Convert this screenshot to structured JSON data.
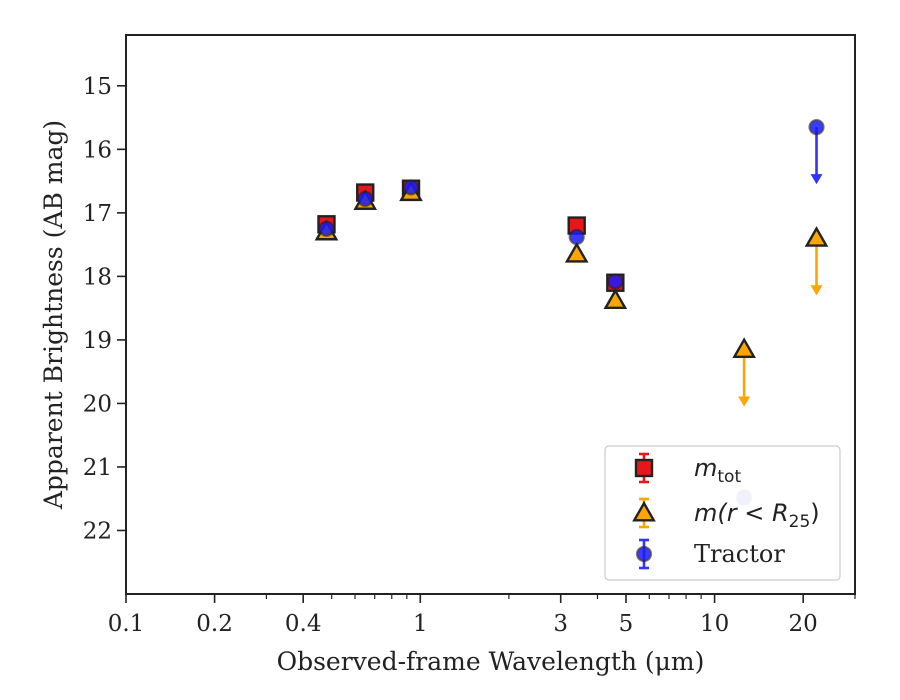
{
  "chart_data": {
    "type": "scatter",
    "xlabel": "Observed-frame Wavelength (μm)",
    "ylabel": "Apparent Brightness (AB mag)",
    "x_scale": "log",
    "xlim": [
      0.1,
      30
    ],
    "ylim": [
      23,
      14.2
    ],
    "y_inverted": true,
    "grid": false,
    "legend_position": "bottom-right",
    "x_ticks": [
      0.1,
      0.2,
      0.4,
      1,
      3,
      5,
      10,
      20
    ],
    "x_tick_labels": [
      "0.1",
      "0.2",
      "0.4",
      "1",
      "3",
      "5",
      "10",
      "20"
    ],
    "y_ticks": [
      15,
      16,
      17,
      18,
      19,
      20,
      21,
      22
    ],
    "y_tick_labels": [
      "15",
      "16",
      "17",
      "18",
      "19",
      "20",
      "21",
      "22"
    ],
    "series": [
      {
        "label_main": "m",
        "label_sub": "tot",
        "marker": "square",
        "face_color": "#e8161b",
        "error_color": "#e8161b",
        "points": [
          {
            "x": 0.48,
            "y": 17.18
          },
          {
            "x": 0.65,
            "y": 16.68
          },
          {
            "x": 0.93,
            "y": 16.62
          },
          {
            "x": 3.4,
            "y": 17.2
          },
          {
            "x": 4.6,
            "y": 18.1
          }
        ]
      },
      {
        "label_main": "m(r < R",
        "label_sub": "25",
        "label_end": ")",
        "marker": "triangle",
        "face_color": "#ffa500",
        "error_color": "#ffa500",
        "points": [
          {
            "x": 0.48,
            "y": 17.3
          },
          {
            "x": 0.65,
            "y": 16.82
          },
          {
            "x": 0.93,
            "y": 16.68
          },
          {
            "x": 3.4,
            "y": 17.65
          },
          {
            "x": 4.6,
            "y": 18.38
          },
          {
            "x": 12.6,
            "y": 19.15,
            "upper_limit": true
          },
          {
            "x": 22.2,
            "y": 17.4,
            "upper_limit": true
          }
        ]
      },
      {
        "label_main": "Tractor",
        "marker": "circle",
        "face_color": "#1a1aff",
        "error_color": "#3333ff",
        "points": [
          {
            "x": 0.48,
            "y": 17.25
          },
          {
            "x": 0.65,
            "y": 16.78
          },
          {
            "x": 0.93,
            "y": 16.6
          },
          {
            "x": 3.4,
            "y": 17.38
          },
          {
            "x": 4.6,
            "y": 18.08
          },
          {
            "x": 12.6,
            "y": 21.48,
            "faint": true
          },
          {
            "x": 22.2,
            "y": 15.65,
            "upper_limit": true
          }
        ]
      }
    ]
  }
}
